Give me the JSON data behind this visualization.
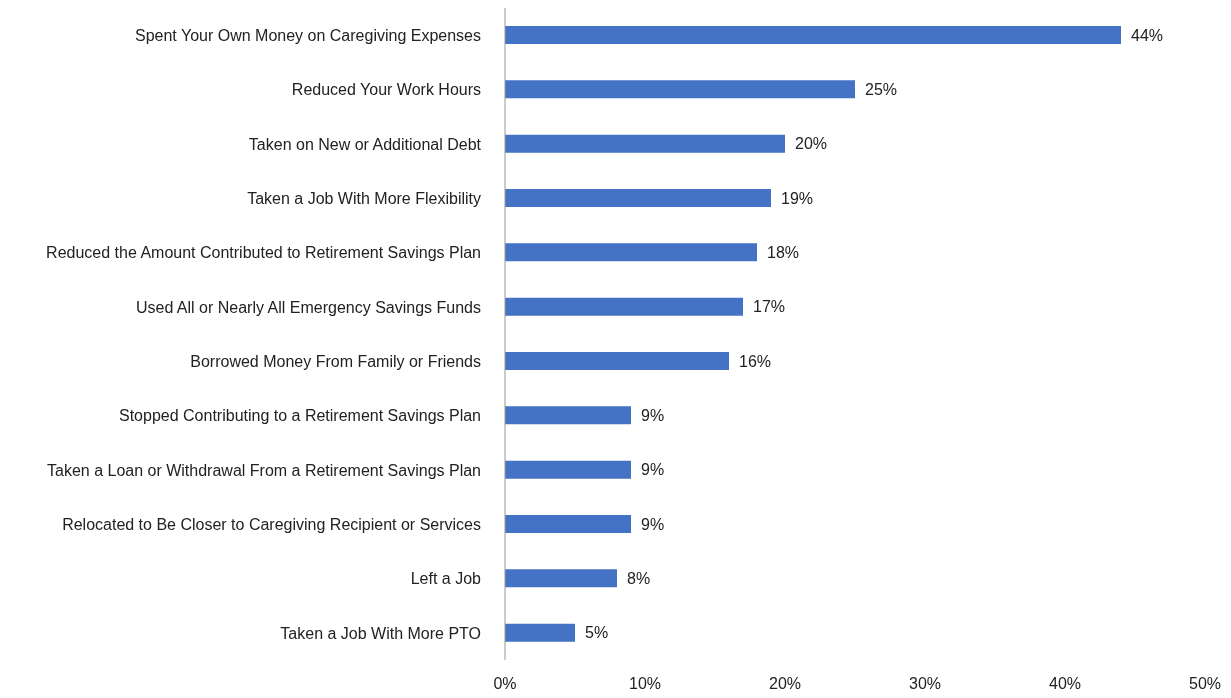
{
  "chart_data": {
    "type": "bar",
    "orientation": "horizontal",
    "categories": [
      "Spent Your Own Money on Caregiving Expenses",
      "Reduced Your Work Hours",
      "Taken on New or Additional Debt",
      "Taken a Job With More Flexibility",
      "Reduced the Amount Contributed to Retirement Savings Plan",
      "Used All or Nearly All Emergency Savings Funds",
      "Borrowed Money From Family or Friends",
      "Stopped Contributing to a Retirement Savings Plan",
      "Taken a Loan or Withdrawal From a Retirement Savings Plan",
      "Relocated to Be Closer to Caregiving Recipient or Services",
      "Left a Job",
      "Taken a Job With More PTO"
    ],
    "values": [
      44,
      25,
      20,
      19,
      18,
      17,
      16,
      9,
      9,
      9,
      8,
      5
    ],
    "value_labels": [
      "44%",
      "25%",
      "20%",
      "19%",
      "18%",
      "17%",
      "16%",
      "9%",
      "9%",
      "9%",
      "8%",
      "5%"
    ],
    "color": "#4472c4",
    "xlim": [
      0,
      50
    ],
    "xticks": [
      {
        "value": 0,
        "label": "0%"
      },
      {
        "value": 10,
        "label": "10%"
      },
      {
        "value": 20,
        "label": "20%"
      },
      {
        "value": 30,
        "label": "30%"
      },
      {
        "value": 40,
        "label": "40%"
      },
      {
        "value": 50,
        "label": "50%"
      }
    ],
    "grid": false,
    "legend": false
  }
}
